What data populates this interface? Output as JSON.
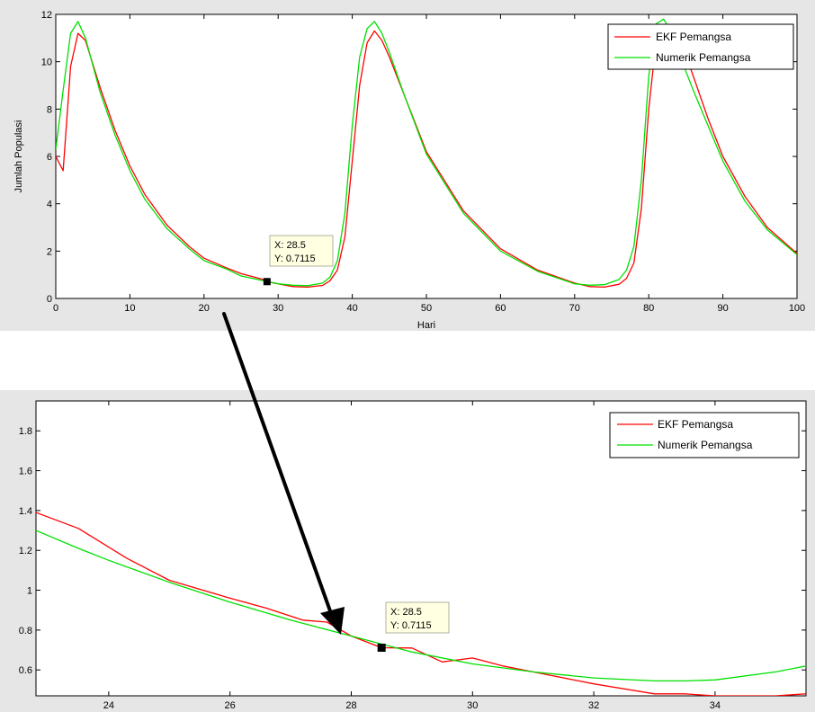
{
  "chart_data": [
    {
      "type": "line",
      "title": "",
      "xlabel": "Hari",
      "ylabel": "Jumlah Populasi",
      "xlim": [
        0,
        100
      ],
      "ylim": [
        0,
        12
      ],
      "xticks": [
        0,
        10,
        20,
        30,
        40,
        50,
        60,
        70,
        80,
        90,
        100
      ],
      "yticks": [
        0,
        2,
        4,
        6,
        8,
        10,
        12
      ],
      "grid": false,
      "legend": "top-right",
      "series": [
        {
          "name": "EKF Pemangsa",
          "color": "#ff0000",
          "x": [
            0,
            1,
            2,
            3,
            4,
            6,
            8,
            10,
            12,
            15,
            18,
            20,
            23,
            25,
            28,
            28.5,
            30,
            32,
            34,
            36,
            37,
            38,
            39,
            40,
            41,
            42,
            43,
            44,
            45,
            47,
            50,
            55,
            60,
            65,
            70,
            72,
            74,
            76,
            77,
            78,
            79,
            80,
            81,
            82,
            83,
            84,
            85,
            86,
            88,
            90,
            93,
            96,
            100
          ],
          "y": [
            6.0,
            5.4,
            9.8,
            11.2,
            10.9,
            8.9,
            7.1,
            5.6,
            4.4,
            3.1,
            2.2,
            1.7,
            1.3,
            1.05,
            0.8,
            0.7115,
            0.62,
            0.5,
            0.48,
            0.55,
            0.75,
            1.2,
            2.6,
            5.8,
            9.0,
            10.8,
            11.3,
            10.9,
            10.2,
            8.6,
            6.2,
            3.7,
            2.1,
            1.2,
            0.65,
            0.5,
            0.48,
            0.6,
            0.85,
            1.5,
            3.8,
            8.0,
            10.9,
            11.5,
            11.1,
            10.6,
            10.3,
            9.4,
            7.6,
            6.0,
            4.3,
            3.0,
            1.9
          ]
        },
        {
          "name": "Numerik Pemangsa",
          "color": "#00e000",
          "x": [
            0,
            1,
            2,
            3,
            4,
            6,
            8,
            10,
            12,
            15,
            18,
            20,
            23,
            25,
            28,
            30,
            32,
            34,
            36,
            37,
            38,
            39,
            40,
            41,
            42,
            43,
            44,
            45,
            47,
            50,
            55,
            60,
            65,
            70,
            72,
            74,
            76,
            77,
            78,
            79,
            80,
            81,
            82,
            83,
            84,
            85,
            86,
            88,
            90,
            93,
            96,
            100
          ],
          "y": [
            6.3,
            8.8,
            11.2,
            11.7,
            11.0,
            8.7,
            6.9,
            5.4,
            4.2,
            2.95,
            2.1,
            1.6,
            1.25,
            0.95,
            0.75,
            0.62,
            0.56,
            0.54,
            0.65,
            0.9,
            1.6,
            3.6,
            7.3,
            10.2,
            11.4,
            11.7,
            11.2,
            10.4,
            8.6,
            6.1,
            3.6,
            2.0,
            1.15,
            0.62,
            0.56,
            0.58,
            0.8,
            1.2,
            2.2,
            5.0,
            9.4,
            11.6,
            11.8,
            11.3,
            10.6,
            9.6,
            8.8,
            7.3,
            5.8,
            4.1,
            2.9,
            1.85
          ]
        }
      ],
      "data_tip": {
        "x": 28.5,
        "y": 0.7115,
        "x_text": "X: 28.5",
        "y_text": "Y: 0.7115"
      }
    },
    {
      "type": "line",
      "title": "",
      "xlabel": "",
      "ylabel": "",
      "xlim": [
        22.8,
        35.5
      ],
      "ylim": [
        0.47,
        1.95
      ],
      "xticks": [
        24,
        26,
        28,
        30,
        32,
        34
      ],
      "yticks": [
        0.6,
        0.8,
        1.0,
        1.2,
        1.4,
        1.6,
        1.8
      ],
      "ytick_labels": [
        "0.6",
        "0.8",
        "1",
        "1.2",
        "1.4",
        "1.6",
        "1.8"
      ],
      "grid": false,
      "legend": "top-right",
      "series": [
        {
          "name": "EKF Pemangsa",
          "color": "#ff0000",
          "x": [
            22.8,
            23.5,
            24.3,
            25.0,
            26.0,
            26.6,
            27.2,
            27.6,
            28.0,
            28.5,
            29.0,
            29.5,
            30.0,
            30.5,
            31.0,
            32.0,
            33.0,
            33.5,
            34.0,
            35.0,
            35.5
          ],
          "y": [
            1.39,
            1.31,
            1.16,
            1.05,
            0.96,
            0.91,
            0.85,
            0.84,
            0.77,
            0.7115,
            0.71,
            0.64,
            0.66,
            0.62,
            0.59,
            0.53,
            0.48,
            0.48,
            0.47,
            0.47,
            0.48
          ]
        },
        {
          "name": "Numerik Pemangsa",
          "color": "#00e000",
          "x": [
            22.8,
            23.5,
            24.0,
            25.0,
            26.0,
            27.0,
            28.0,
            29.0,
            30.0,
            31.0,
            32.0,
            33.0,
            33.5,
            34.0,
            35.0,
            35.5
          ],
          "y": [
            1.3,
            1.21,
            1.15,
            1.04,
            0.94,
            0.85,
            0.77,
            0.69,
            0.63,
            0.59,
            0.56,
            0.545,
            0.545,
            0.55,
            0.59,
            0.62
          ]
        }
      ],
      "data_tip": {
        "x": 28.5,
        "y": 0.7115,
        "x_text": "X: 28.5",
        "y_text": "Y: 0.7115"
      }
    }
  ]
}
